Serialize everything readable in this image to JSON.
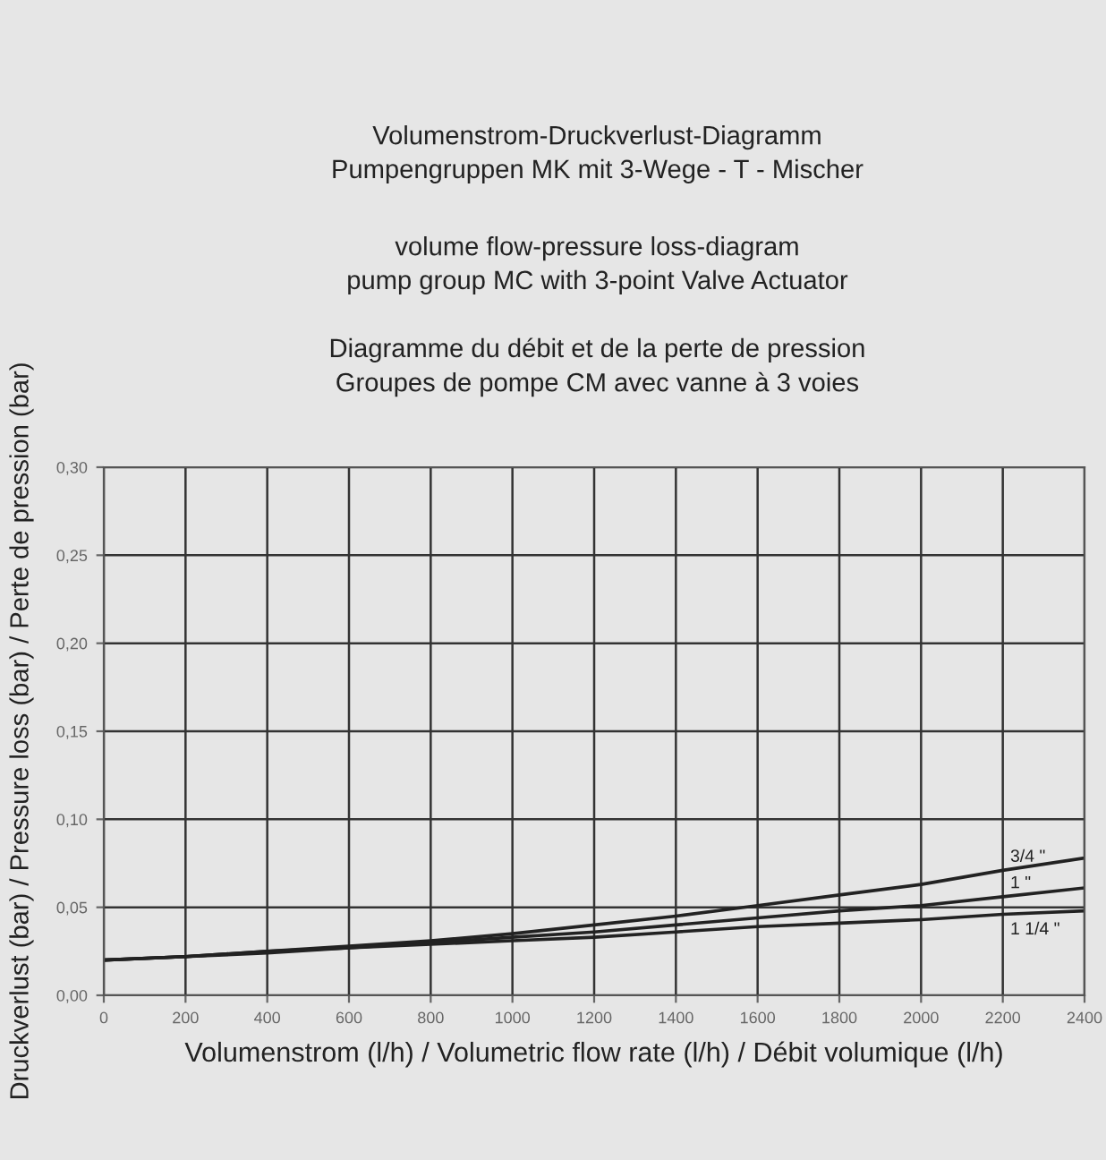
{
  "chart_data": {
    "type": "line",
    "title": "Volumenstrom-Druckverlust-Diagramm\nPumpengruppen MK mit 3-Wege - T - Mischer",
    "subtitle": "volume flow-pressure loss-diagram\npump group MC with 3-point Valve Actuator\n\nDiagramme du débit et de la perte de pression\nGroupes de pompe CM avec vanne à 3 voies",
    "xlabel": "Volumenstrom (l/h) / Volumetric flow rate (l/h) / Débit volumique (l/h)",
    "ylabel": "Druckverlust (bar) / Pressure loss (bar) / Perte de pression (bar)",
    "x": [
      0,
      200,
      400,
      600,
      800,
      1000,
      1200,
      1400,
      1600,
      1800,
      2000,
      2200,
      2400
    ],
    "series": [
      {
        "name": "3/4 \"",
        "color": "#222222",
        "values": [
          0.02,
          0.022,
          0.025,
          0.028,
          0.031,
          0.035,
          0.04,
          0.045,
          0.051,
          0.057,
          0.063,
          0.071,
          0.078
        ]
      },
      {
        "name": "1 \"",
        "color": "#222222",
        "values": [
          0.02,
          0.022,
          0.025,
          0.027,
          0.03,
          0.033,
          0.036,
          0.04,
          0.044,
          0.048,
          0.051,
          0.056,
          0.061
        ]
      },
      {
        "name": "1 1/4 \"",
        "color": "#222222",
        "values": [
          0.02,
          0.022,
          0.024,
          0.027,
          0.029,
          0.031,
          0.033,
          0.036,
          0.039,
          0.041,
          0.043,
          0.046,
          0.048
        ]
      }
    ],
    "xlim": [
      0,
      2400
    ],
    "xticks": [
      0,
      200,
      400,
      600,
      800,
      1000,
      1200,
      1400,
      1600,
      1800,
      2000,
      2200,
      2400
    ],
    "ylim": [
      0,
      0.3
    ],
    "yticks": [
      {
        "value": 0,
        "label": "0,00"
      },
      {
        "value": 0.05,
        "label": "0,05"
      },
      {
        "value": 0.1,
        "label": "0,10"
      },
      {
        "value": 0.15,
        "label": "0,15"
      },
      {
        "value": 0.2,
        "label": "0,20"
      },
      {
        "value": 0.25,
        "label": "0,25"
      },
      {
        "value": 0.3,
        "label": "0,30"
      }
    ],
    "grid": true,
    "legend": false,
    "marker": "none",
    "line_style": "solid"
  }
}
